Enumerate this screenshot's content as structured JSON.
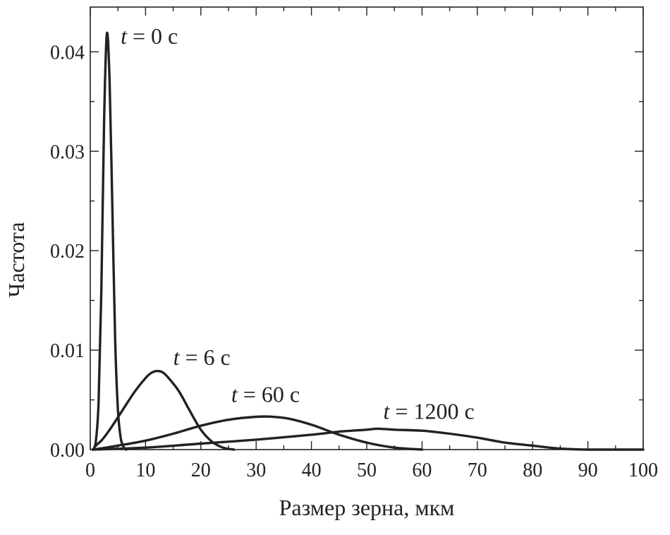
{
  "chart_data": {
    "type": "line",
    "xlabel": "Размер зерна, мкм",
    "ylabel": "Частота",
    "xlim": [
      0,
      100
    ],
    "ylim": [
      0,
      0.0445
    ],
    "x_ticks": [
      0,
      10,
      20,
      30,
      40,
      50,
      60,
      70,
      80,
      90,
      100
    ],
    "x_tick_labels": [
      "0",
      "10",
      "20",
      "30",
      "40",
      "50",
      "60",
      "70",
      "80",
      "90",
      "100"
    ],
    "y_ticks": [
      0,
      0.01,
      0.02,
      0.03,
      0.04
    ],
    "y_tick_labels": [
      "0.00",
      "0.01",
      "0.02",
      "0.03",
      "0.04"
    ],
    "grid": false,
    "line_color": "#222222",
    "series": [
      {
        "annotation": {
          "var": "t",
          "rest": " = 0 с",
          "x": 5.5,
          "y": 0.0408
        },
        "points": [
          [
            0.5,
            0.0
          ],
          [
            1.0,
            0.0008
          ],
          [
            1.5,
            0.0048
          ],
          [
            2.0,
            0.016
          ],
          [
            2.5,
            0.033
          ],
          [
            3.0,
            0.0418
          ],
          [
            3.5,
            0.037
          ],
          [
            4.0,
            0.024
          ],
          [
            4.5,
            0.011
          ],
          [
            5.0,
            0.004
          ],
          [
            5.5,
            0.0012
          ],
          [
            6.0,
            0.0003
          ],
          [
            6.5,
            0.0
          ]
        ]
      },
      {
        "annotation": {
          "var": "t",
          "rest": " = 6 с",
          "x": 15,
          "y": 0.0085
        },
        "points": [
          [
            0.5,
            0.0
          ],
          [
            1,
            0.0004
          ],
          [
            2,
            0.0009
          ],
          [
            3,
            0.0016
          ],
          [
            4,
            0.0024
          ],
          [
            6,
            0.0041
          ],
          [
            8,
            0.0058
          ],
          [
            10,
            0.0072
          ],
          [
            11,
            0.0077
          ],
          [
            12,
            0.0079
          ],
          [
            13,
            0.0078
          ],
          [
            14,
            0.0073
          ],
          [
            16,
            0.0059
          ],
          [
            18,
            0.0039
          ],
          [
            20,
            0.002
          ],
          [
            22,
            0.0008
          ],
          [
            24,
            0.0002
          ],
          [
            26,
            0.0
          ]
        ]
      },
      {
        "annotation": {
          "var": "t",
          "rest": " = 60 с",
          "x": 25.5,
          "y": 0.0048
        },
        "points": [
          [
            0.5,
            0.0
          ],
          [
            5,
            0.0004
          ],
          [
            10,
            0.0009
          ],
          [
            15,
            0.0016
          ],
          [
            20,
            0.0024
          ],
          [
            25,
            0.003
          ],
          [
            30,
            0.0033
          ],
          [
            33,
            0.0033
          ],
          [
            36,
            0.0031
          ],
          [
            40,
            0.0025
          ],
          [
            45,
            0.0015
          ],
          [
            50,
            0.0007
          ],
          [
            55,
            0.0002
          ],
          [
            60,
            0.0
          ]
        ]
      },
      {
        "annotation": {
          "var": "t",
          "rest": " = 1200 с",
          "x": 53,
          "y": 0.0031
        },
        "points": [
          [
            0.5,
            0.0
          ],
          [
            10,
            0.0002
          ],
          [
            20,
            0.0006
          ],
          [
            30,
            0.001
          ],
          [
            40,
            0.0015
          ],
          [
            45,
            0.0018
          ],
          [
            50,
            0.002
          ],
          [
            52,
            0.0021
          ],
          [
            55,
            0.002
          ],
          [
            60,
            0.0019
          ],
          [
            65,
            0.0016
          ],
          [
            70,
            0.0012
          ],
          [
            75,
            0.0007
          ],
          [
            80,
            0.0004
          ],
          [
            85,
            0.0001
          ],
          [
            90,
            0.0
          ],
          [
            100,
            0.0
          ]
        ]
      }
    ]
  }
}
